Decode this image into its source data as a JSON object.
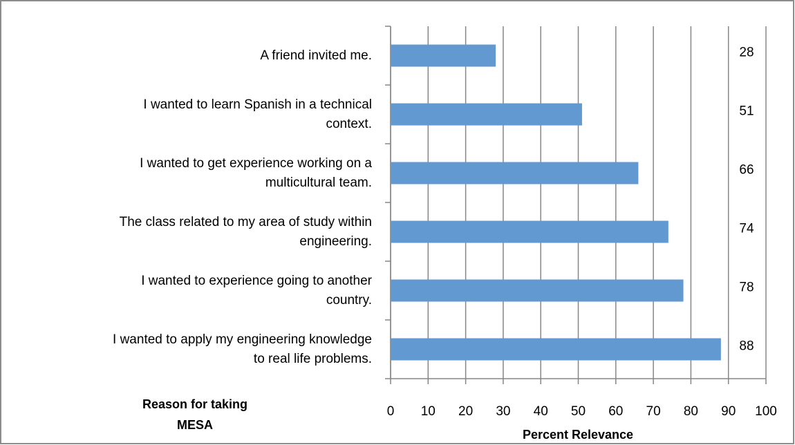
{
  "chart_data": {
    "type": "bar",
    "orientation": "horizontal",
    "categories": [
      "A friend invited me.",
      "I wanted to learn Spanish in a technical\ncontext.",
      "I wanted to get experience working on a\nmulticultural team.",
      "The class related to my area of study within\nengineering.",
      "I wanted to experience going to another\ncountry.",
      "I wanted to apply my engineering knowledge\nto real life problems."
    ],
    "values": [
      28,
      51,
      66,
      74,
      78,
      88
    ],
    "color": "#6199d0",
    "xlim": [
      0,
      100
    ],
    "xticks": [
      0,
      10,
      20,
      30,
      40,
      50,
      60,
      70,
      80,
      90,
      100
    ],
    "grid": true,
    "xlabel": "Percent Relevance",
    "ylabel": "Reason for taking\nMESA"
  }
}
